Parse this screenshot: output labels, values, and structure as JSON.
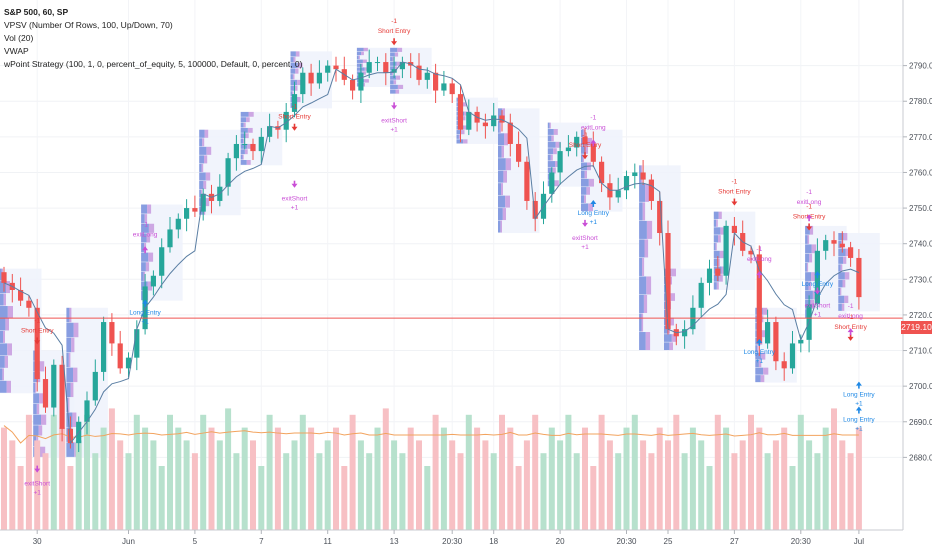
{
  "legend": {
    "symbol": "S&P 500, 60, SP",
    "vpsv": "VPSV (Number Of Rows, 100, Up/Down, 70)",
    "vol": "Vol (20)",
    "vwap": "VWAP",
    "strategy": "wPoint Strategy (100, 1, 0, percent_of_equity, 5, 100000, Default, 0, percent, 0)"
  },
  "last_price": "2719.10",
  "colors": {
    "up": "#26a69a",
    "down": "#ef5350",
    "vol_up": "#b7e1cd",
    "vol_down": "#f7c0c4",
    "vwap": "#5a7ea3",
    "vol_ma": "#f2a35e",
    "short": "#e53935",
    "long": "#1e88e5",
    "exit": "#c94fd6",
    "profile_up": "#7b93de",
    "profile_down": "#c99fe0",
    "profile_box": "#eef2fb"
  },
  "chart_data": {
    "type": "candlestick",
    "ylim": [
      2670,
      2800
    ],
    "y_ticks": [
      2680,
      2690,
      2700,
      2710,
      2720,
      2730,
      2740,
      2750,
      2760,
      2770,
      2780,
      2790
    ],
    "y_tick_labels": [
      "2680.00",
      "2690.00",
      "2700.00",
      "2710.00",
      "2720.00",
      "2730.00",
      "2740.00",
      "2750.00",
      "2760.00",
      "2770.00",
      "2780.00",
      "2790.00"
    ],
    "x_tick_labels": [
      "30",
      "Jun",
      "5",
      "7",
      "11",
      "13",
      "20:30",
      "18",
      "20",
      "20:30",
      "25",
      "27",
      "20:30",
      "Jul"
    ],
    "x_tick_bars": [
      4,
      15,
      23,
      31,
      39,
      47,
      54,
      59,
      67,
      75,
      80,
      88,
      96,
      103
    ],
    "closes": [
      2729,
      2727,
      2724,
      2722,
      2702,
      2694,
      2706,
      2688,
      2684,
      2690,
      2696,
      2704,
      2718,
      2712,
      2705,
      2708,
      2716,
      2728,
      2731,
      2739,
      2744,
      2747,
      2750,
      2749,
      2754,
      2752,
      2756,
      2764,
      2768,
      2768,
      2766,
      2770,
      2773,
      2772,
      2777,
      2782,
      2788,
      2785,
      2788,
      2790,
      2789,
      2786,
      2783,
      2788,
      2791,
      2791,
      2788,
      2789,
      2791,
      2790,
      2786,
      2788,
      2783,
      2785,
      2782,
      2772,
      2777,
      2774,
      2773,
      2776,
      2774,
      2768,
      2763,
      2752,
      2747,
      2754,
      2760,
      2766,
      2767,
      2770,
      2768,
      2763,
      2757,
      2753,
      2755,
      2759,
      2760,
      2758,
      2752,
      2743,
      2716,
      2714,
      2716,
      2722,
      2729,
      2733,
      2731,
      2745,
      2743,
      2738,
      2737,
      2712,
      2718,
      2707,
      2705,
      2712,
      2713,
      2723,
      2738,
      2741,
      2740,
      2739,
      2736,
      2725
    ],
    "volumes": [
      0.8,
      0.7,
      0.5,
      0.9,
      0.7,
      0.6,
      0.9,
      0.8,
      0.5,
      0.7,
      0.9,
      0.6,
      0.8,
      0.95,
      0.7,
      0.6,
      0.9,
      0.8,
      0.7,
      0.5,
      0.9,
      0.8,
      0.7,
      0.6,
      0.9,
      0.8,
      0.7,
      0.95,
      0.6,
      0.8,
      0.7,
      0.5,
      0.9,
      0.8,
      0.6,
      0.7,
      0.9,
      0.8,
      0.6,
      0.7,
      0.8,
      0.5,
      0.9,
      0.7,
      0.6,
      0.8,
      0.95,
      0.7,
      0.6,
      0.8,
      0.7,
      0.5,
      0.9,
      0.8,
      0.7,
      0.6,
      0.9,
      0.8,
      0.7,
      0.6,
      0.9,
      0.8,
      0.5,
      0.7,
      0.9,
      0.6,
      0.8,
      0.7,
      0.9,
      0.6,
      0.8,
      0.5,
      0.9,
      0.7,
      0.6,
      0.8,
      0.9,
      0.7,
      0.6,
      0.8,
      0.7,
      0.9,
      0.6,
      0.8,
      0.7,
      0.5,
      0.9,
      0.8,
      0.6,
      0.7,
      0.9,
      0.8,
      0.6,
      0.7,
      0.8,
      0.5,
      0.9,
      0.7,
      0.6,
      0.8,
      0.95,
      0.7,
      0.6,
      0.8
    ],
    "last_price": 2719.1,
    "annotations": [
      {
        "bar": 4,
        "price": 2712,
        "type": "short",
        "label": "Short Entry",
        "qty": "-1"
      },
      {
        "bar": 4,
        "price": 2676,
        "type": "exit_short",
        "label": "exitShort",
        "qty": "+1"
      },
      {
        "bar": 17,
        "price": 2724,
        "type": "long",
        "label": "Long Entry",
        "qty": "+1"
      },
      {
        "bar": 17,
        "price": 2739,
        "type": "exit_long",
        "label": "exitLong",
        "qty": "-1"
      },
      {
        "bar": 35,
        "price": 2772,
        "type": "short",
        "label": "Short Entry",
        "qty": "-1"
      },
      {
        "bar": 35,
        "price": 2756,
        "type": "exit_short",
        "label": "exitShort",
        "qty": "+1"
      },
      {
        "bar": 47,
        "price": 2796,
        "type": "short",
        "label": "Short Entry",
        "qty": "-1"
      },
      {
        "bar": 47,
        "price": 2778,
        "type": "exit_short",
        "label": "exitShort",
        "qty": "+1"
      },
      {
        "bar": 70,
        "price": 2764,
        "type": "short",
        "label": "Short Entry",
        "qty": "-1"
      },
      {
        "bar": 70,
        "price": 2745,
        "type": "exit_short",
        "label": "exitShort",
        "qty": "+1"
      },
      {
        "bar": 71,
        "price": 2752,
        "type": "long",
        "label": "Long Entry",
        "qty": "+1"
      },
      {
        "bar": 71,
        "price": 2769,
        "type": "exit_long",
        "label": "exitLong",
        "qty": "-1"
      },
      {
        "bar": 88,
        "price": 2751,
        "type": "short",
        "label": "Short Entry",
        "qty": "-1"
      },
      {
        "bar": 91,
        "price": 2713,
        "type": "long",
        "label": "Long Entry",
        "qty": "+1"
      },
      {
        "bar": 91,
        "price": 2732,
        "type": "exit_long",
        "label": "exitLong",
        "qty": "-1"
      },
      {
        "bar": 97,
        "price": 2744,
        "type": "short",
        "label": "Short Entry",
        "qty": "-1"
      },
      {
        "bar": 97,
        "price": 2748,
        "type": "exit_long",
        "label": "exitLong",
        "qty": "-1"
      },
      {
        "bar": 98,
        "price": 2732,
        "type": "long",
        "label": "Long Entry",
        "qty": "+1"
      },
      {
        "bar": 98,
        "price": 2726,
        "type": "exit_short",
        "label": "exitShort",
        "qty": "+1"
      },
      {
        "bar": 102,
        "price": 2713,
        "type": "short",
        "label": "Short Entry",
        "qty": "-1"
      },
      {
        "bar": 102,
        "price": 2716,
        "type": "exit_long",
        "label": "exitLong",
        "qty": "-1"
      },
      {
        "bar": 103,
        "price": 2701,
        "type": "long",
        "label": "Long Entry",
        "qty": "+1"
      },
      {
        "bar": 103,
        "price": 2694,
        "type": "long",
        "label": "Long Entry",
        "qty": "+1"
      }
    ]
  }
}
